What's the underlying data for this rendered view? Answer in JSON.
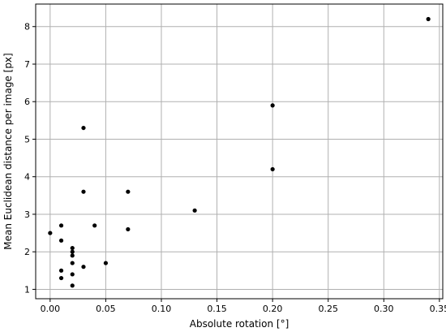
{
  "chart_data": {
    "type": "scatter",
    "title": "",
    "xlabel": "Absolute rotation [°]",
    "ylabel": "Mean Euclidean distance per image [px]",
    "xlim": [
      -0.013,
      0.353
    ],
    "ylim": [
      0.75,
      8.6
    ],
    "x_ticks": [
      0.0,
      0.05,
      0.1,
      0.15,
      0.2,
      0.25,
      0.3,
      0.35
    ],
    "x_tick_labels": [
      "0.00",
      "0.05",
      "0.10",
      "0.15",
      "0.20",
      "0.25",
      "0.30",
      "0.35"
    ],
    "y_ticks": [
      1,
      2,
      3,
      4,
      5,
      6,
      7,
      8
    ],
    "y_tick_labels": [
      "1",
      "2",
      "3",
      "4",
      "5",
      "6",
      "7",
      "8"
    ],
    "grid": true,
    "marker_color": "#000000",
    "points": [
      {
        "x": 0.0,
        "y": 2.5
      },
      {
        "x": 0.01,
        "y": 2.7
      },
      {
        "x": 0.01,
        "y": 2.3
      },
      {
        "x": 0.01,
        "y": 1.5
      },
      {
        "x": 0.01,
        "y": 1.3
      },
      {
        "x": 0.02,
        "y": 2.1
      },
      {
        "x": 0.02,
        "y": 2.0
      },
      {
        "x": 0.02,
        "y": 1.9
      },
      {
        "x": 0.02,
        "y": 1.7
      },
      {
        "x": 0.02,
        "y": 1.4
      },
      {
        "x": 0.02,
        "y": 1.1
      },
      {
        "x": 0.03,
        "y": 5.3
      },
      {
        "x": 0.03,
        "y": 3.6
      },
      {
        "x": 0.03,
        "y": 1.6
      },
      {
        "x": 0.04,
        "y": 2.7
      },
      {
        "x": 0.05,
        "y": 1.7
      },
      {
        "x": 0.07,
        "y": 3.6
      },
      {
        "x": 0.07,
        "y": 2.6
      },
      {
        "x": 0.13,
        "y": 3.1
      },
      {
        "x": 0.2,
        "y": 5.9
      },
      {
        "x": 0.2,
        "y": 4.2
      },
      {
        "x": 0.34,
        "y": 8.2
      }
    ]
  }
}
